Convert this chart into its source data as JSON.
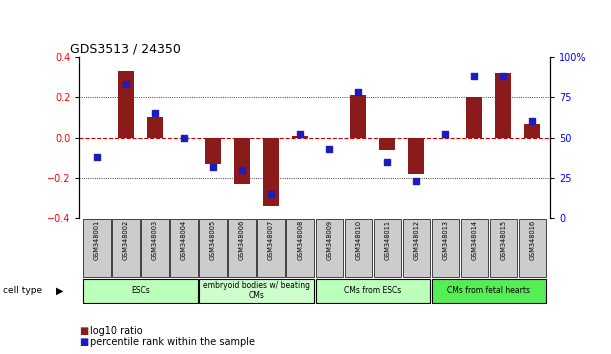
{
  "title": "GDS3513 / 24350",
  "samples": [
    "GSM348001",
    "GSM348002",
    "GSM348003",
    "GSM348004",
    "GSM348005",
    "GSM348006",
    "GSM348007",
    "GSM348008",
    "GSM348009",
    "GSM348010",
    "GSM348011",
    "GSM348012",
    "GSM348013",
    "GSM348014",
    "GSM348015",
    "GSM348016"
  ],
  "log10_ratio": [
    0.0,
    0.33,
    0.1,
    0.0,
    -0.13,
    -0.23,
    -0.34,
    0.01,
    0.0,
    0.21,
    -0.06,
    -0.18,
    0.0,
    0.2,
    0.32,
    0.07
  ],
  "percentile_rank": [
    38,
    83,
    65,
    50,
    32,
    30,
    15,
    52,
    43,
    78,
    35,
    23,
    52,
    88,
    88,
    60
  ],
  "bar_color": "#8B1A1A",
  "dot_color": "#1C1CBF",
  "zero_line_color": "#CC0000",
  "grid_color": "#000000",
  "ylim_left": [
    -0.4,
    0.4
  ],
  "ylim_right": [
    0,
    100
  ],
  "yticks_left": [
    -0.4,
    -0.2,
    0.0,
    0.2,
    0.4
  ],
  "yticks_right": [
    0,
    25,
    50,
    75,
    100
  ],
  "cell_groups": [
    {
      "label": "ESCs",
      "start": 0,
      "end": 3,
      "color": "#BBFFBB"
    },
    {
      "label": "embryoid bodies w/ beating\nCMs",
      "start": 4,
      "end": 7,
      "color": "#CCFFCC"
    },
    {
      "label": "CMs from ESCs",
      "start": 8,
      "end": 11,
      "color": "#BBFFBB"
    },
    {
      "label": "CMs from fetal hearts",
      "start": 12,
      "end": 15,
      "color": "#55EE55"
    }
  ],
  "legend_bar_label": "log10 ratio",
  "legend_dot_label": "percentile rank within the sample",
  "bar_width": 0.55,
  "dot_size": 22
}
